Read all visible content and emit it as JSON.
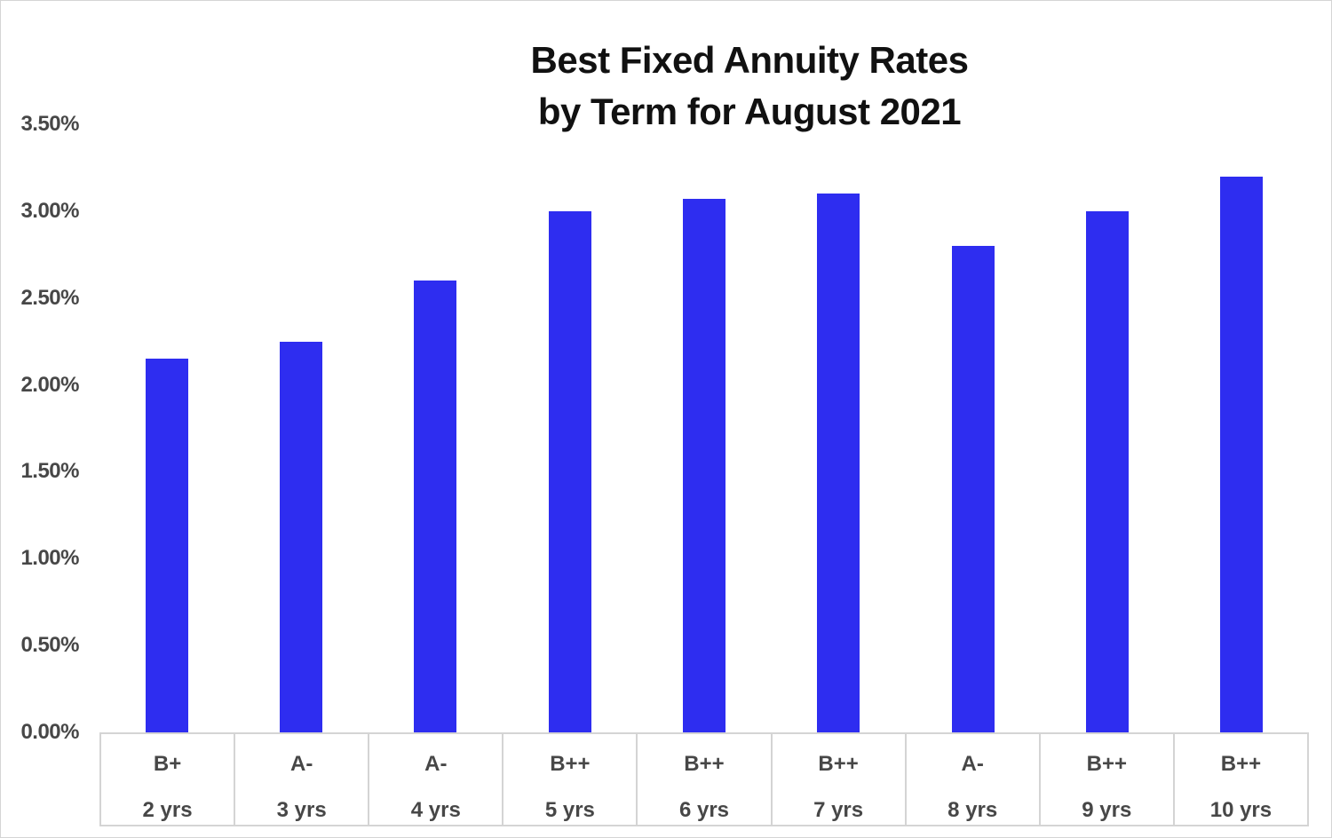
{
  "title": {
    "line1": "Best Fixed Annuity Rates",
    "line2": "by Term for August 2021"
  },
  "chart_data": {
    "type": "bar",
    "title": "Best Fixed Annuity Rates by Term for August 2021",
    "categories": [
      "2 yrs",
      "3 yrs",
      "4 yrs",
      "5 yrs",
      "6 yrs",
      "7 yrs",
      "8 yrs",
      "9 yrs",
      "10 yrs"
    ],
    "ratings": [
      "B+",
      "A-",
      "A-",
      "B++",
      "B++",
      "B++",
      "A-",
      "B++",
      "B++"
    ],
    "values": [
      2.15,
      2.25,
      2.6,
      3.0,
      3.07,
      3.1,
      2.8,
      3.0,
      3.2
    ],
    "value_unit": "percent",
    "xlabel": "",
    "ylabel": "",
    "ylim": [
      0,
      3.5
    ],
    "y_tick_labels": [
      "0.00%",
      "0.50%",
      "1.00%",
      "1.50%",
      "2.00%",
      "2.50%",
      "3.00%",
      "3.50%"
    ],
    "grid": false,
    "legend": false,
    "bar_color": "#2e2df0",
    "axis_label_color": "#474747",
    "title_color": "#111111",
    "grid_border_color": "#d4d4d4"
  }
}
